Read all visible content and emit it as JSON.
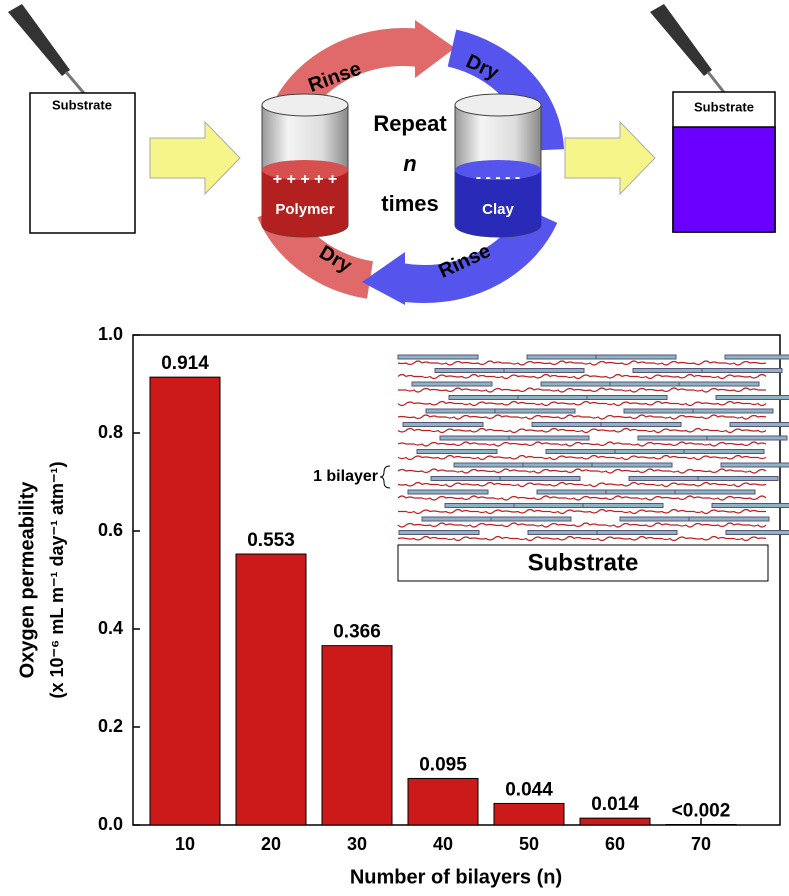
{
  "diagram": {
    "left_substrate": "Substrate",
    "right_substrate": "Substrate",
    "rinse_top": "Rinse",
    "dry_top": "Dry",
    "dry_bottom": "Dry",
    "rinse_bottom": "Rinse",
    "repeat": "Repeat",
    "n": "n",
    "times": "times",
    "polymer": "Polymer",
    "polymer_charges": "+ + + + +",
    "clay": "Clay",
    "clay_charges": "- - - - -"
  },
  "chart_data": {
    "type": "bar",
    "y_label": "Oxygen permeability",
    "y_label_units": "(x 10⁻⁶ mL m⁻¹ day⁻¹ atm⁻¹)",
    "x_label": "Number of bilayers (n)",
    "categories": [
      "10",
      "20",
      "30",
      "40",
      "50",
      "60",
      "70"
    ],
    "values": [
      0.914,
      0.553,
      0.366,
      0.095,
      0.044,
      0.014,
      0.001
    ],
    "value_labels": [
      "0.914",
      "0.553",
      "0.366",
      "0.095",
      "0.044",
      "0.014",
      "<0.002"
    ],
    "color": "#cc1a1a",
    "ylim": [
      0,
      1.0
    ],
    "yticks": [
      {
        "value": 0,
        "label": "0.0"
      },
      0.2,
      0.4,
      0.6,
      0.8,
      {
        "value": 1.0,
        "label": "1.0"
      }
    ],
    "inset": {
      "bilayer_label": "1 bilayer",
      "substrate": "Substrate"
    }
  }
}
